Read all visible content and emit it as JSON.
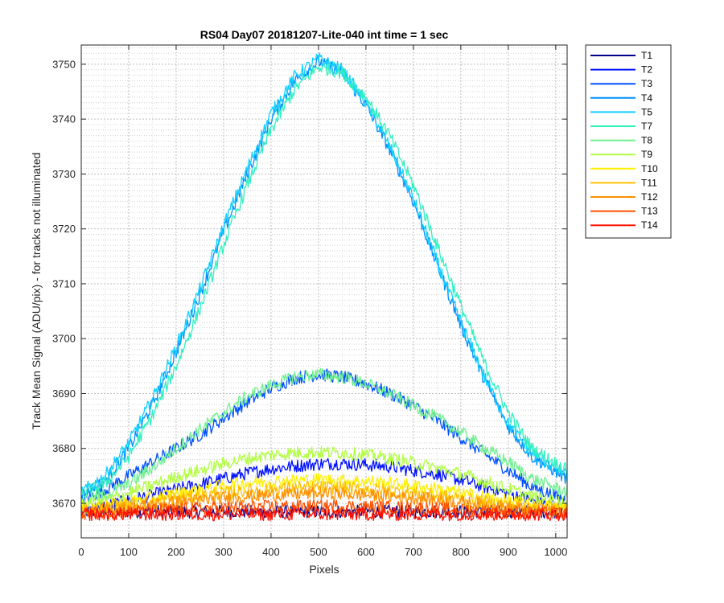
{
  "chart_data": {
    "type": "line",
    "title": "RS04 Day07 20181207-Lite-040 int time = 1 sec",
    "xlabel": "Pixels",
    "ylabel": "Track Mean Signal (ADU/pix) - for tracks not illuminated",
    "xlim": [
      0,
      1024
    ],
    "ylim": [
      3663.7,
      3753.5
    ],
    "x_ticks": [
      0,
      100,
      200,
      300,
      400,
      500,
      600,
      700,
      800,
      900,
      1000
    ],
    "y_ticks": [
      3670,
      3680,
      3690,
      3700,
      3710,
      3720,
      3730,
      3740,
      3750
    ],
    "y_minor_step": 1,
    "grid": "major and minor, dotted",
    "legend_position": "outside top-right",
    "x": [
      0,
      50,
      100,
      150,
      200,
      250,
      300,
      350,
      400,
      450,
      500,
      550,
      600,
      650,
      700,
      750,
      800,
      850,
      900,
      950,
      1024
    ],
    "series": [
      {
        "name": "T1",
        "color": "#00008F",
        "values": [
          3668.5,
          3668.5,
          3668.5,
          3668.5,
          3668.5,
          3668.5,
          3668.5,
          3668.5,
          3668.5,
          3668.5,
          3668.5,
          3668.5,
          3668.5,
          3668.5,
          3668.5,
          3668.5,
          3668.5,
          3668.5,
          3668.5,
          3668.5,
          3668.5
        ]
      },
      {
        "name": "T2",
        "color": "#0010FF",
        "values": [
          3669,
          3669.5,
          3670.5,
          3671.5,
          3672.5,
          3673.5,
          3674.5,
          3675.5,
          3676.3,
          3676.8,
          3677.2,
          3677.3,
          3677.0,
          3676.7,
          3676.0,
          3675.3,
          3674.3,
          3673.0,
          3671.8,
          3670.5,
          3669
        ]
      },
      {
        "name": "T3",
        "color": "#0050FF",
        "values": [
          3670.5,
          3672.5,
          3675,
          3677.5,
          3680,
          3682.5,
          3685.5,
          3688.5,
          3691,
          3692.8,
          3693.5,
          3693,
          3691.8,
          3690,
          3687.8,
          3685,
          3682,
          3679,
          3676,
          3673,
          3670.5
        ]
      },
      {
        "name": "T4",
        "color": "#0090FF",
        "values": [
          3671.5,
          3674,
          3680,
          3688,
          3697.5,
          3708,
          3719.5,
          3730,
          3740,
          3747,
          3750.5,
          3748.5,
          3742.5,
          3734.5,
          3725,
          3713.5,
          3702.5,
          3692.5,
          3684,
          3678.5,
          3674.5
        ]
      },
      {
        "name": "T5",
        "color": "#10CFFF",
        "values": [
          3672,
          3675,
          3681,
          3689,
          3698.5,
          3709,
          3720.5,
          3731,
          3741,
          3747.8,
          3751,
          3749,
          3743,
          3735,
          3725.5,
          3714,
          3703,
          3693,
          3684.5,
          3679,
          3675
        ]
      },
      {
        "name": "T7",
        "color": "#30F0C0",
        "values": [
          3671.5,
          3673.5,
          3678.5,
          3686,
          3695,
          3705.5,
          3717,
          3728,
          3738,
          3745.5,
          3749.5,
          3748.5,
          3744,
          3737,
          3728,
          3717,
          3706,
          3695.5,
          3686.5,
          3680,
          3676
        ]
      },
      {
        "name": "T8",
        "color": "#70F090",
        "values": [
          3670.5,
          3671.5,
          3673.5,
          3676.5,
          3680,
          3683.5,
          3686.5,
          3689.5,
          3691.5,
          3693,
          3693.5,
          3693,
          3691.8,
          3690,
          3687.8,
          3685.5,
          3683,
          3680,
          3677.5,
          3674.5,
          3672
        ]
      },
      {
        "name": "T9",
        "color": "#B0FF40",
        "values": [
          3669.5,
          3670.5,
          3671.8,
          3673.3,
          3674.8,
          3676,
          3677.2,
          3678.2,
          3678.8,
          3679.2,
          3679.3,
          3679.2,
          3678.8,
          3678.2,
          3677.4,
          3676.4,
          3675.3,
          3674,
          3672.6,
          3671.2,
          3670
        ]
      },
      {
        "name": "T10",
        "color": "#FFF000",
        "values": [
          3669,
          3669.5,
          3670.2,
          3671,
          3671.8,
          3672.5,
          3673.2,
          3673.7,
          3674,
          3674.2,
          3674.3,
          3674.2,
          3674,
          3673.7,
          3673.2,
          3672.6,
          3671.9,
          3671.1,
          3670.4,
          3669.7,
          3669.2
        ]
      },
      {
        "name": "T11",
        "color": "#FFC000",
        "values": [
          3668.8,
          3669.2,
          3669.7,
          3670.3,
          3670.9,
          3671.4,
          3671.9,
          3672.3,
          3672.6,
          3672.8,
          3672.9,
          3672.8,
          3672.6,
          3672.3,
          3671.9,
          3671.4,
          3670.9,
          3670.3,
          3669.7,
          3669.2,
          3668.8
        ]
      },
      {
        "name": "T12",
        "color": "#FF9000",
        "values": [
          3668.5,
          3668.8,
          3669.2,
          3669.7,
          3670.2,
          3670.6,
          3671,
          3671.3,
          3671.5,
          3671.7,
          3671.8,
          3671.7,
          3671.5,
          3671.3,
          3671,
          3670.6,
          3670.2,
          3669.7,
          3669.2,
          3668.8,
          3668.5
        ]
      },
      {
        "name": "T13",
        "color": "#FF5000",
        "values": [
          3668.2,
          3668.3,
          3668.5,
          3668.7,
          3668.9,
          3669.1,
          3669.2,
          3669.3,
          3669.4,
          3669.5,
          3669.5,
          3669.5,
          3669.4,
          3669.3,
          3669.2,
          3669,
          3668.8,
          3668.6,
          3668.4,
          3668.3,
          3668.2
        ]
      },
      {
        "name": "T14",
        "color": "#FF1000",
        "values": [
          3668,
          3668,
          3668,
          3668,
          3668,
          3668,
          3668,
          3668,
          3668,
          3668,
          3668,
          3668,
          3668,
          3668,
          3668,
          3668,
          3668,
          3668,
          3668,
          3668,
          3668
        ]
      }
    ]
  }
}
